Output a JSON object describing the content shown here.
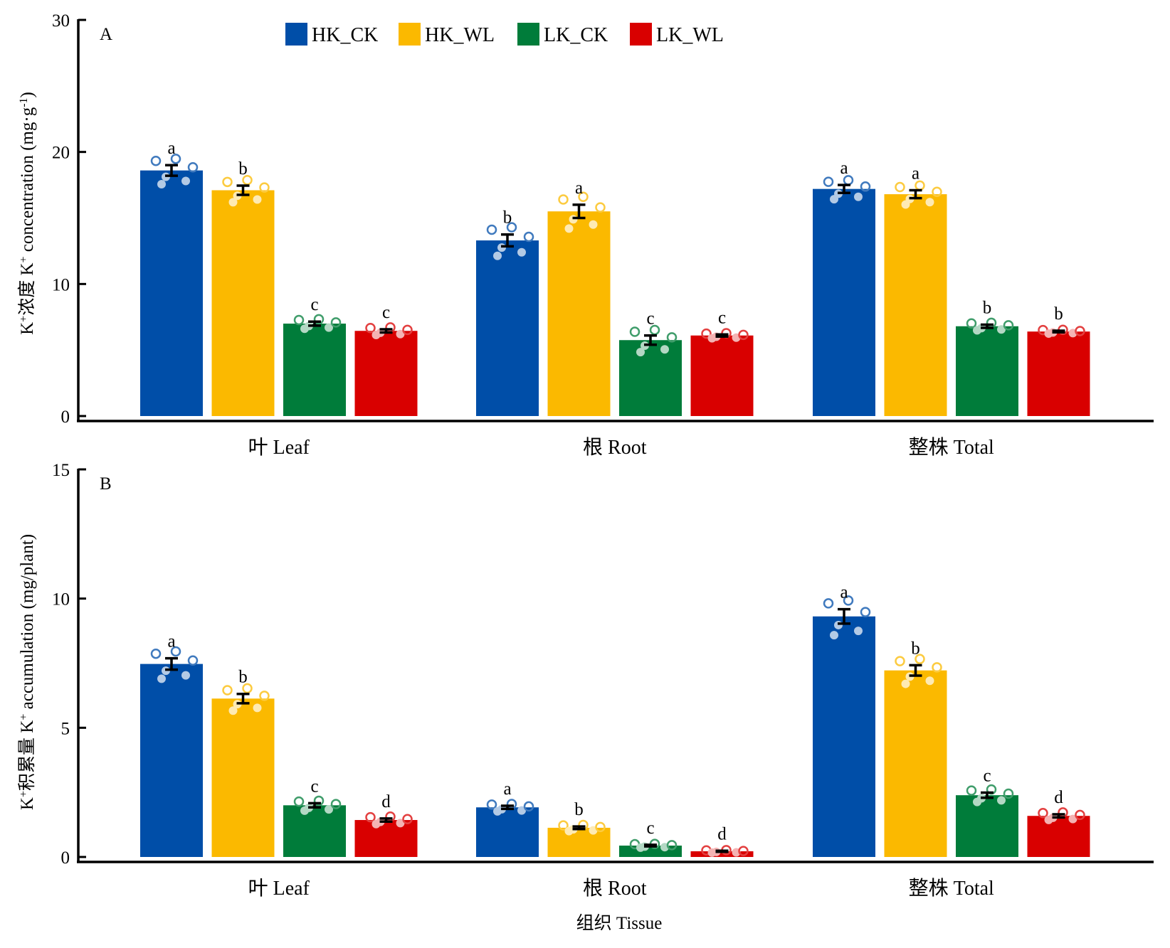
{
  "chart_data": [
    {
      "panel": "A",
      "type": "bar",
      "panel_label": "A",
      "ylabel_parts": {
        "prefix_K": "K",
        "sup1": "+",
        "cn": "浓度 K",
        "sup2": "+",
        "en": " concentration (mg·g",
        "sup3": "-1",
        "end": ")"
      },
      "ylabel": "K+浓度 K+ concentration (mg·g-1)",
      "xlabel": "",
      "ylim": [
        0,
        30
      ],
      "yticks": [
        0,
        10,
        20,
        30
      ],
      "categories": [
        "叶 Leaf",
        "根 Root",
        "整株 Total"
      ],
      "series": [
        {
          "name": "HK_CK",
          "color": "#004ea8",
          "values": [
            18.6,
            13.3,
            17.2
          ],
          "se": [
            0.4,
            0.45,
            0.3
          ],
          "letters": [
            "a",
            "b",
            "a"
          ]
        },
        {
          "name": "HK_WL",
          "color": "#fbb900",
          "values": [
            17.1,
            15.5,
            16.8
          ],
          "se": [
            0.35,
            0.5,
            0.3
          ],
          "letters": [
            "b",
            "a",
            "a"
          ]
        },
        {
          "name": "LK_CK",
          "color": "#007c3a",
          "values": [
            7.0,
            5.75,
            6.8
          ],
          "se": [
            0.15,
            0.35,
            0.12
          ],
          "letters": [
            "c",
            "c",
            "b"
          ]
        },
        {
          "name": "LK_WL",
          "color": "#d90000",
          "values": [
            6.45,
            6.1,
            6.4
          ],
          "se": [
            0.12,
            0.08,
            0.06
          ],
          "letters": [
            "c",
            "c",
            "b"
          ]
        }
      ],
      "legend": {
        "position": "top-center",
        "entries": [
          "HK_CK",
          "HK_WL",
          "LK_CK",
          "LK_WL"
        ]
      },
      "grid": false
    },
    {
      "panel": "B",
      "type": "bar",
      "panel_label": "B",
      "ylabel_parts": {
        "prefix_K": "K",
        "sup1": "+",
        "cn": "积累量 K",
        "sup2": "+",
        "en": " accumulation (mg/plant)",
        "sup3": "",
        "end": ""
      },
      "ylabel": "K+积累量 K+ accumulation (mg/plant)",
      "xlabel": "组织 Tissue",
      "ylim": [
        0,
        15
      ],
      "yticks": [
        0,
        5,
        10,
        15
      ],
      "categories": [
        "叶 Leaf",
        "根 Root",
        "整株 Total"
      ],
      "series": [
        {
          "name": "HK_CK",
          "color": "#004ea8",
          "values": [
            7.47,
            1.92,
            9.31
          ],
          "se": [
            0.22,
            0.06,
            0.28
          ],
          "letters": [
            "a",
            "a",
            "a"
          ]
        },
        {
          "name": "HK_WL",
          "color": "#fbb900",
          "values": [
            6.13,
            1.13,
            7.22
          ],
          "se": [
            0.18,
            0.05,
            0.2
          ],
          "letters": [
            "b",
            "b",
            "b"
          ]
        },
        {
          "name": "LK_CK",
          "color": "#007c3a",
          "values": [
            2.0,
            0.44,
            2.39
          ],
          "se": [
            0.08,
            0.03,
            0.1
          ],
          "letters": [
            "c",
            "c",
            "c"
          ]
        },
        {
          "name": "LK_WL",
          "color": "#d90000",
          "values": [
            1.43,
            0.22,
            1.59
          ],
          "se": [
            0.06,
            0.02,
            0.06
          ],
          "letters": [
            "d",
            "d",
            "d"
          ]
        }
      ],
      "grid": false
    }
  ]
}
